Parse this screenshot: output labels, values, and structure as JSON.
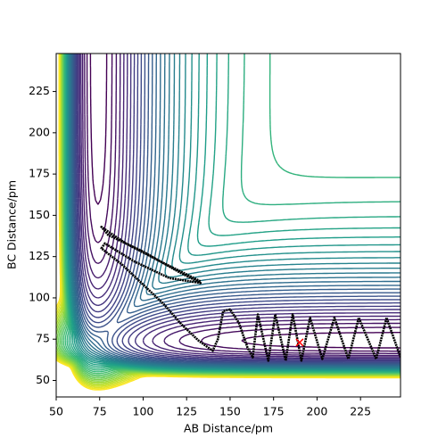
{
  "chart_data": {
    "type": "contour",
    "xlabel": "AB Distance/pm",
    "ylabel": "BC Distance/pm",
    "xlim": [
      50,
      248
    ],
    "ylim": [
      40,
      248
    ],
    "xticks": [
      50,
      75,
      100,
      125,
      150,
      175,
      200,
      225
    ],
    "yticks": [
      50,
      75,
      100,
      125,
      150,
      175,
      200,
      225
    ],
    "colormap": "viridis",
    "levels": [
      -420,
      -405,
      -390,
      -375,
      -360,
      -345,
      -330,
      -315,
      -300,
      -285,
      -270,
      -255,
      -240,
      -225,
      -210,
      -195,
      -180,
      -165,
      -150,
      -135,
      -120,
      -105,
      -90,
      -75,
      -60,
      -45,
      -30,
      -15,
      0,
      15,
      30,
      45,
      60,
      75,
      90,
      105,
      120,
      135,
      150,
      165,
      180
    ],
    "trajectory": {
      "color": "#000000",
      "x": [
        133,
        110,
        90,
        76,
        80,
        100,
        120,
        133,
        115,
        95,
        78,
        76,
        88,
        100,
        112,
        122,
        132,
        140,
        143,
        146,
        150,
        155,
        160,
        163,
        166,
        172,
        176,
        182,
        186,
        191,
        196,
        203,
        210,
        218,
        224,
        234,
        240,
        248
      ],
      "y": [
        110,
        122,
        133,
        143,
        138,
        128,
        116,
        109,
        112,
        122,
        133,
        130,
        120,
        108,
        96,
        84,
        74,
        68,
        75,
        92,
        93,
        85,
        70,
        64,
        90,
        62,
        90,
        62,
        90,
        62,
        88,
        63,
        88,
        63,
        88,
        63,
        88,
        64
      ]
    },
    "marker": {
      "x": 190,
      "y": 73,
      "color": "#ff0000"
    }
  }
}
